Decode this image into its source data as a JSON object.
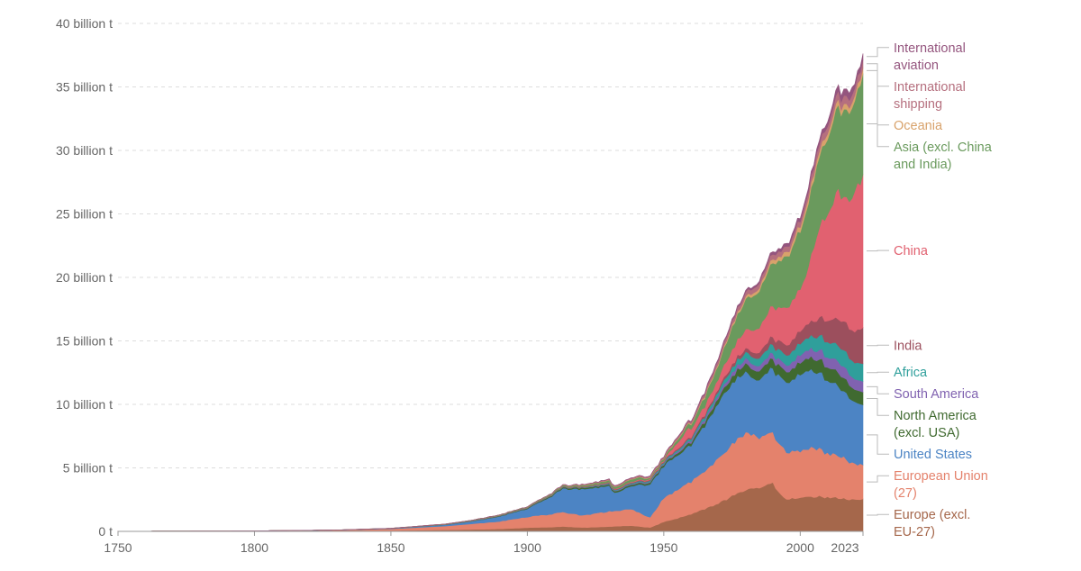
{
  "chart_data": {
    "type": "area",
    "stacked": true,
    "x_ticks": [
      "1750",
      "1800",
      "1850",
      "1900",
      "1950",
      "2000",
      "2023"
    ],
    "y_ticks": [
      "0 t",
      "5 billion t",
      "10 billion t",
      "15 billion t",
      "20 billion t",
      "25 billion t",
      "30 billion t",
      "35 billion t",
      "40 billion t"
    ],
    "xlim": [
      1750,
      2023
    ],
    "ylim": [
      0,
      40
    ],
    "y_unit": "billion t",
    "grid": true,
    "legend_placement": "right (labels aligned to the end of each series)",
    "series": [
      {
        "name": "Europe (excl. EU-27)",
        "label_lines": [
          "Europe (excl.",
          "EU-27)"
        ],
        "color": "#a5674b",
        "points": [
          [
            1750,
            0.003
          ],
          [
            1800,
            0.01
          ],
          [
            1830,
            0.03
          ],
          [
            1850,
            0.06
          ],
          [
            1870,
            0.12
          ],
          [
            1880,
            0.15
          ],
          [
            1890,
            0.2
          ],
          [
            1900,
            0.29
          ],
          [
            1910,
            0.35
          ],
          [
            1913,
            0.4
          ],
          [
            1920,
            0.3
          ],
          [
            1930,
            0.38
          ],
          [
            1938,
            0.45
          ],
          [
            1945,
            0.3
          ],
          [
            1950,
            0.75
          ],
          [
            1960,
            1.35
          ],
          [
            1970,
            2.2
          ],
          [
            1980,
            3.3
          ],
          [
            1985,
            3.5
          ],
          [
            1990,
            3.75
          ],
          [
            1992,
            3.1
          ],
          [
            1995,
            2.6
          ],
          [
            2000,
            2.6
          ],
          [
            2005,
            2.75
          ],
          [
            2010,
            2.7
          ],
          [
            2015,
            2.6
          ],
          [
            2020,
            2.45
          ],
          [
            2023,
            2.5
          ]
        ]
      },
      {
        "name": "European Union (27)",
        "label_lines": [
          "European Union",
          "(27)"
        ],
        "color": "#e4826c",
        "points": [
          [
            1750,
            0.007
          ],
          [
            1800,
            0.03
          ],
          [
            1830,
            0.06
          ],
          [
            1850,
            0.14
          ],
          [
            1870,
            0.3
          ],
          [
            1880,
            0.45
          ],
          [
            1890,
            0.6
          ],
          [
            1900,
            0.85
          ],
          [
            1910,
            1.05
          ],
          [
            1913,
            1.15
          ],
          [
            1920,
            0.95
          ],
          [
            1930,
            1.2
          ],
          [
            1938,
            1.3
          ],
          [
            1945,
            0.8
          ],
          [
            1950,
            1.9
          ],
          [
            1960,
            2.55
          ],
          [
            1970,
            3.55
          ],
          [
            1980,
            4.5
          ],
          [
            1985,
            3.95
          ],
          [
            1990,
            4.0
          ],
          [
            1995,
            3.75
          ],
          [
            2000,
            3.7
          ],
          [
            2005,
            3.85
          ],
          [
            2010,
            3.5
          ],
          [
            2015,
            3.3
          ],
          [
            2020,
            2.8
          ],
          [
            2023,
            2.75
          ]
        ]
      },
      {
        "name": "United States",
        "label_lines": [
          "United States"
        ],
        "color": "#4c84c4",
        "points": [
          [
            1750,
            0.001
          ],
          [
            1800,
            0.002
          ],
          [
            1830,
            0.01
          ],
          [
            1850,
            0.03
          ],
          [
            1870,
            0.1
          ],
          [
            1880,
            0.2
          ],
          [
            1890,
            0.4
          ],
          [
            1900,
            0.65
          ],
          [
            1910,
            1.5
          ],
          [
            1913,
            1.85
          ],
          [
            1920,
            2.05
          ],
          [
            1930,
            2.0
          ],
          [
            1932,
            1.4
          ],
          [
            1938,
            1.8
          ],
          [
            1945,
            2.65
          ],
          [
            1950,
            2.5
          ],
          [
            1960,
            2.9
          ],
          [
            1970,
            4.3
          ],
          [
            1973,
            4.8
          ],
          [
            1980,
            4.8
          ],
          [
            1983,
            4.35
          ],
          [
            1990,
            5.1
          ],
          [
            2000,
            6.0
          ],
          [
            2005,
            6.15
          ],
          [
            2007,
            6.1
          ],
          [
            2010,
            5.7
          ],
          [
            2015,
            5.4
          ],
          [
            2020,
            4.7
          ],
          [
            2023,
            4.9
          ]
        ]
      },
      {
        "name": "North America (excl. USA)",
        "label_lines": [
          "North America",
          "(excl. USA)"
        ],
        "color": "#406a30",
        "points": [
          [
            1750,
            0
          ],
          [
            1800,
            0
          ],
          [
            1850,
            0.005
          ],
          [
            1880,
            0.02
          ],
          [
            1900,
            0.05
          ],
          [
            1920,
            0.1
          ],
          [
            1940,
            0.12
          ],
          [
            1950,
            0.15
          ],
          [
            1960,
            0.22
          ],
          [
            1970,
            0.4
          ],
          [
            1980,
            0.65
          ],
          [
            1990,
            0.75
          ],
          [
            2000,
            0.95
          ],
          [
            2010,
            1.05
          ],
          [
            2015,
            1.1
          ],
          [
            2020,
            0.95
          ],
          [
            2023,
            1.0
          ]
        ]
      },
      {
        "name": "South America",
        "label_lines": [
          "South America"
        ],
        "color": "#8062b0",
        "points": [
          [
            1750,
            0
          ],
          [
            1800,
            0
          ],
          [
            1850,
            0.002
          ],
          [
            1900,
            0.01
          ],
          [
            1920,
            0.02
          ],
          [
            1950,
            0.08
          ],
          [
            1960,
            0.15
          ],
          [
            1970,
            0.23
          ],
          [
            1980,
            0.4
          ],
          [
            1990,
            0.45
          ],
          [
            2000,
            0.6
          ],
          [
            2010,
            0.8
          ],
          [
            2015,
            0.9
          ],
          [
            2020,
            0.8
          ],
          [
            2023,
            0.85
          ]
        ]
      },
      {
        "name": "Africa",
        "label_lines": [
          "Africa"
        ],
        "color": "#2f9f9b",
        "points": [
          [
            1750,
            0
          ],
          [
            1800,
            0
          ],
          [
            1850,
            0.001
          ],
          [
            1900,
            0.01
          ],
          [
            1920,
            0.02
          ],
          [
            1950,
            0.1
          ],
          [
            1960,
            0.15
          ],
          [
            1970,
            0.3
          ],
          [
            1980,
            0.5
          ],
          [
            1990,
            0.7
          ],
          [
            2000,
            0.9
          ],
          [
            2010,
            1.2
          ],
          [
            2015,
            1.3
          ],
          [
            2020,
            1.3
          ],
          [
            2023,
            1.4
          ]
        ]
      },
      {
        "name": "India",
        "label_lines": [
          "India"
        ],
        "color": "#9c4f5d",
        "points": [
          [
            1750,
            0
          ],
          [
            1800,
            0
          ],
          [
            1850,
            0.001
          ],
          [
            1900,
            0.02
          ],
          [
            1920,
            0.03
          ],
          [
            1950,
            0.07
          ],
          [
            1960,
            0.12
          ],
          [
            1970,
            0.2
          ],
          [
            1980,
            0.3
          ],
          [
            1990,
            0.6
          ],
          [
            2000,
            0.98
          ],
          [
            2005,
            1.2
          ],
          [
            2010,
            1.7
          ],
          [
            2015,
            2.2
          ],
          [
            2020,
            2.45
          ],
          [
            2023,
            2.9
          ]
        ]
      },
      {
        "name": "China",
        "label_lines": [
          "China"
        ],
        "color": "#e16170",
        "points": [
          [
            1750,
            0
          ],
          [
            1800,
            0
          ],
          [
            1850,
            0.001
          ],
          [
            1900,
            0.01
          ],
          [
            1920,
            0.02
          ],
          [
            1950,
            0.08
          ],
          [
            1959,
            0.8
          ],
          [
            1961,
            0.55
          ],
          [
            1970,
            0.8
          ],
          [
            1980,
            1.5
          ],
          [
            1990,
            2.4
          ],
          [
            2000,
            3.4
          ],
          [
            2002,
            3.7
          ],
          [
            2005,
            5.9
          ],
          [
            2010,
            8.6
          ],
          [
            2014,
            10.0
          ],
          [
            2016,
            9.8
          ],
          [
            2020,
            10.8
          ],
          [
            2023,
            11.9
          ]
        ]
      },
      {
        "name": "Asia (excl. China and India)",
        "label_lines": [
          "Asia (excl. China",
          "and India)"
        ],
        "color": "#6a9a5d",
        "points": [
          [
            1750,
            0
          ],
          [
            1800,
            0
          ],
          [
            1850,
            0.003
          ],
          [
            1900,
            0.05
          ],
          [
            1920,
            0.1
          ],
          [
            1940,
            0.2
          ],
          [
            1945,
            0.1
          ],
          [
            1950,
            0.15
          ],
          [
            1960,
            0.35
          ],
          [
            1970,
            1.1
          ],
          [
            1980,
            2.4
          ],
          [
            1990,
            3.4
          ],
          [
            2000,
            4.6
          ],
          [
            2005,
            5.3
          ],
          [
            2010,
            6.1
          ],
          [
            2015,
            6.8
          ],
          [
            2020,
            7.2
          ],
          [
            2023,
            7.8
          ]
        ]
      },
      {
        "name": "Oceania",
        "label_lines": [
          "Oceania"
        ],
        "color": "#d8a26b",
        "points": [
          [
            1750,
            0
          ],
          [
            1800,
            0
          ],
          [
            1850,
            0.001
          ],
          [
            1900,
            0.01
          ],
          [
            1920,
            0.02
          ],
          [
            1950,
            0.04
          ],
          [
            1960,
            0.07
          ],
          [
            1970,
            0.12
          ],
          [
            1980,
            0.2
          ],
          [
            1990,
            0.3
          ],
          [
            2000,
            0.39
          ],
          [
            2010,
            0.44
          ],
          [
            2020,
            0.43
          ],
          [
            2023,
            0.44
          ]
        ]
      },
      {
        "name": "International shipping",
        "label_lines": [
          "International",
          "shipping"
        ],
        "color": "#b56f7e",
        "points": [
          [
            1750,
            0
          ],
          [
            1800,
            0
          ],
          [
            1900,
            0
          ],
          [
            1950,
            0.1
          ],
          [
            1960,
            0.15
          ],
          [
            1970,
            0.3
          ],
          [
            1980,
            0.35
          ],
          [
            1990,
            0.4
          ],
          [
            2000,
            0.45
          ],
          [
            2005,
            0.55
          ],
          [
            2010,
            0.6
          ],
          [
            2015,
            0.65
          ],
          [
            2020,
            0.6
          ],
          [
            2023,
            0.65
          ]
        ]
      },
      {
        "name": "International aviation",
        "label_lines": [
          "International",
          "aviation"
        ],
        "color": "#94557e",
        "points": [
          [
            1750,
            0
          ],
          [
            1800,
            0
          ],
          [
            1900,
            0
          ],
          [
            1950,
            0.01
          ],
          [
            1960,
            0.05
          ],
          [
            1970,
            0.1
          ],
          [
            1980,
            0.12
          ],
          [
            1990,
            0.2
          ],
          [
            2000,
            0.27
          ],
          [
            2010,
            0.34
          ],
          [
            2019,
            0.6
          ],
          [
            2020,
            0.3
          ],
          [
            2021,
            0.35
          ],
          [
            2023,
            0.5
          ]
        ]
      }
    ]
  }
}
